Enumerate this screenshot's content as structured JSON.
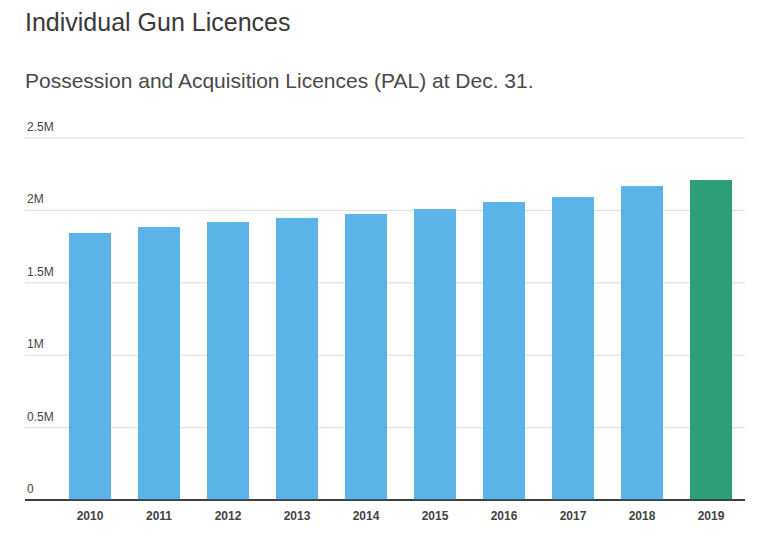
{
  "chart_data": {
    "type": "bar",
    "title": "Individual Gun Licences",
    "subtitle": "Possession and Acquisition Licences (PAL) at Dec. 31.",
    "categories": [
      "2010",
      "2011",
      "2012",
      "2013",
      "2014",
      "2015",
      "2016",
      "2017",
      "2018",
      "2019"
    ],
    "values": [
      1844000,
      1885000,
      1920000,
      1948000,
      1975000,
      2010000,
      2058000,
      2092000,
      2168000,
      2210000
    ],
    "colors": [
      "#5cb3e8",
      "#5cb3e8",
      "#5cb3e8",
      "#5cb3e8",
      "#5cb3e8",
      "#5cb3e8",
      "#5cb3e8",
      "#5cb3e8",
      "#5cb3e8",
      "#2e9e77"
    ],
    "ylim": [
      0,
      2500000
    ],
    "yticks": [
      0,
      {
        "value": 500000,
        "label": "0.5M"
      },
      {
        "value": 1000000,
        "label": "1M"
      },
      {
        "value": 1500000,
        "label": "1.5M"
      },
      {
        "value": 2000000,
        "label": "2M"
      },
      {
        "value": 2500000,
        "label": "2.5M"
      }
    ],
    "grid": true
  }
}
